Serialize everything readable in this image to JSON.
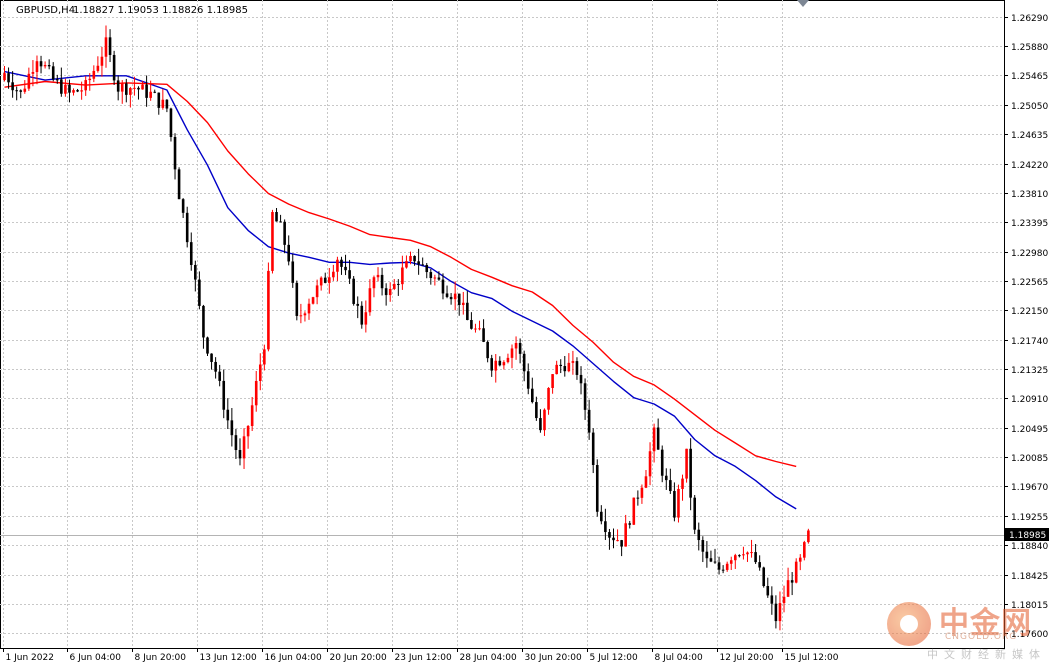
{
  "header": {
    "symbol": "GBPUSD,H4",
    "ohlc": "1.18827 1.19053 1.18826 1.18985"
  },
  "colors": {
    "background": "#ffffff",
    "grid": "#c8c8c8",
    "bull_candle": "#ff0000",
    "bear_candle": "#000000",
    "ma_fast": "#0000c8",
    "ma_slow": "#ff0000",
    "price_tag": "#000000"
  },
  "watermark": {
    "name": "中金网",
    "url": "CNGOLD.ORG",
    "tagline": "中文财经新媒体"
  },
  "chart_data": {
    "type": "candlestick",
    "title": "GBPUSD,H4",
    "timeframe": "H4",
    "current_price": "1.18985",
    "yaxis": {
      "range": [
        1.173,
        1.265
      ],
      "ticks": [
        "1.26290",
        "1.25880",
        "1.25465",
        "1.25050",
        "1.24635",
        "1.24220",
        "1.23810",
        "1.23395",
        "1.22980",
        "1.22565",
        "1.22150",
        "1.21740",
        "1.21325",
        "1.20910",
        "1.20495",
        "1.20085",
        "1.19670",
        "1.19255",
        "1.18840",
        "1.18425",
        "1.18015",
        "1.17600"
      ]
    },
    "xaxis": {
      "ticks": [
        {
          "label": "1 Jun 2022",
          "index": 0
        },
        {
          "label": "6 Jun 04:00",
          "index": 16
        },
        {
          "label": "8 Jun 20:00",
          "index": 32
        },
        {
          "label": "13 Jun 12:00",
          "index": 48
        },
        {
          "label": "16 Jun 04:00",
          "index": 64
        },
        {
          "label": "20 Jun 20:00",
          "index": 80
        },
        {
          "label": "23 Jun 12:00",
          "index": 96
        },
        {
          "label": "28 Jun 04:00",
          "index": 112
        },
        {
          "label": "30 Jun 20:00",
          "index": 128
        },
        {
          "label": "5 Jul 12:00",
          "index": 144
        },
        {
          "label": "8 Jul 04:00",
          "index": 160
        },
        {
          "label": "12 Jul 20:00",
          "index": 176
        },
        {
          "label": "15 Jul 12:00",
          "index": 192
        }
      ]
    },
    "moving_averages": [
      {
        "color": "#0000c8",
        "values": [
          [
            0,
            1.2552
          ],
          [
            10,
            1.254
          ],
          [
            20,
            1.2546
          ],
          [
            30,
            1.2546
          ],
          [
            40,
            1.2526
          ],
          [
            45,
            1.247
          ],
          [
            50,
            1.242
          ],
          [
            55,
            1.236
          ],
          [
            60,
            1.2328
          ],
          [
            65,
            1.2305
          ],
          [
            70,
            1.2296
          ],
          [
            75,
            1.229
          ],
          [
            80,
            1.2283
          ],
          [
            85,
            1.2283
          ],
          [
            90,
            1.228
          ],
          [
            95,
            1.2282
          ],
          [
            100,
            1.2283
          ],
          [
            105,
            1.2275
          ],
          [
            110,
            1.2256
          ],
          [
            115,
            1.224
          ],
          [
            120,
            1.2232
          ],
          [
            125,
            1.2214
          ],
          [
            130,
            1.22
          ],
          [
            135,
            1.2186
          ],
          [
            140,
            1.2165
          ],
          [
            145,
            1.214
          ],
          [
            150,
            1.2115
          ],
          [
            155,
            1.2092
          ],
          [
            160,
            1.2083
          ],
          [
            165,
            1.2066
          ],
          [
            170,
            1.2033
          ],
          [
            175,
            1.201
          ],
          [
            180,
            1.1995
          ],
          [
            185,
            1.1975
          ],
          [
            190,
            1.1952
          ],
          [
            195,
            1.1935
          ]
        ]
      },
      {
        "color": "#ff0000",
        "values": [
          [
            0,
            1.253
          ],
          [
            10,
            1.2538
          ],
          [
            20,
            1.2533
          ],
          [
            30,
            1.2536
          ],
          [
            40,
            1.2534
          ],
          [
            45,
            1.251
          ],
          [
            50,
            1.248
          ],
          [
            55,
            1.244
          ],
          [
            60,
            1.2408
          ],
          [
            65,
            1.238
          ],
          [
            70,
            1.2365
          ],
          [
            75,
            1.2353
          ],
          [
            80,
            1.2344
          ],
          [
            85,
            1.2334
          ],
          [
            90,
            1.2322
          ],
          [
            95,
            1.2318
          ],
          [
            100,
            1.2314
          ],
          [
            105,
            1.2305
          ],
          [
            110,
            1.229
          ],
          [
            115,
            1.2273
          ],
          [
            120,
            1.2262
          ],
          [
            125,
            1.225
          ],
          [
            130,
            1.2241
          ],
          [
            135,
            1.2222
          ],
          [
            140,
            1.2194
          ],
          [
            145,
            1.217
          ],
          [
            150,
            1.2142
          ],
          [
            155,
            1.2122
          ],
          [
            160,
            1.211
          ],
          [
            165,
            1.209
          ],
          [
            170,
            1.2068
          ],
          [
            175,
            1.2046
          ],
          [
            180,
            1.2028
          ],
          [
            185,
            1.201
          ],
          [
            190,
            1.2002
          ],
          [
            195,
            1.1995
          ]
        ]
      }
    ],
    "close_anchors": [
      [
        0,
        1.255
      ],
      [
        4,
        1.252
      ],
      [
        8,
        1.2575
      ],
      [
        12,
        1.254
      ],
      [
        16,
        1.252
      ],
      [
        20,
        1.253
      ],
      [
        25,
        1.259
      ],
      [
        28,
        1.253
      ],
      [
        32,
        1.253
      ],
      [
        36,
        1.252
      ],
      [
        40,
        1.25
      ],
      [
        43,
        1.238
      ],
      [
        46,
        1.229
      ],
      [
        49,
        1.218
      ],
      [
        52,
        1.213
      ],
      [
        55,
        1.206
      ],
      [
        58,
        1.2
      ],
      [
        61,
        1.208
      ],
      [
        64,
        1.217
      ],
      [
        66,
        1.235
      ],
      [
        68,
        1.233
      ],
      [
        70,
        1.229
      ],
      [
        72,
        1.22
      ],
      [
        75,
        1.223
      ],
      [
        79,
        1.226
      ],
      [
        82,
        1.229
      ],
      [
        85,
        1.225
      ],
      [
        88,
        1.22
      ],
      [
        91,
        1.226
      ],
      [
        95,
        1.224
      ],
      [
        98,
        1.227
      ],
      [
        101,
        1.229
      ],
      [
        104,
        1.227
      ],
      [
        108,
        1.225
      ],
      [
        112,
        1.223
      ],
      [
        114,
        1.22
      ],
      [
        117,
        1.218
      ],
      [
        120,
        1.214
      ],
      [
        123,
        1.215
      ],
      [
        126,
        1.217
      ],
      [
        129,
        1.211
      ],
      [
        132,
        1.204
      ],
      [
        135,
        1.213
      ],
      [
        138,
        1.214
      ],
      [
        141,
        1.213
      ],
      [
        144,
        1.205
      ],
      [
        146,
        1.194
      ],
      [
        149,
        1.19
      ],
      [
        152,
        1.189
      ],
      [
        155,
        1.194
      ],
      [
        158,
        1.199
      ],
      [
        160,
        1.204
      ],
      [
        162,
        1.199
      ],
      [
        165,
        1.193
      ],
      [
        168,
        1.201
      ],
      [
        170,
        1.19
      ],
      [
        173,
        1.186
      ],
      [
        176,
        1.185
      ],
      [
        179,
        1.187
      ],
      [
        182,
        1.188
      ],
      [
        185,
        1.186
      ],
      [
        188,
        1.181
      ],
      [
        190,
        1.178
      ],
      [
        193,
        1.183
      ],
      [
        196,
        1.186
      ],
      [
        198,
        1.1898
      ]
    ],
    "candle_count": 199
  }
}
